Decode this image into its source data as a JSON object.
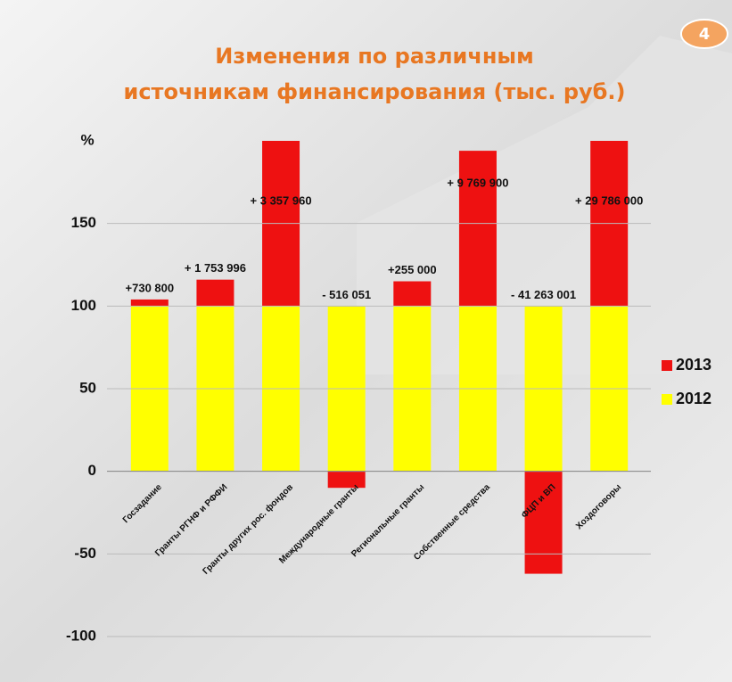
{
  "slide_number": "4",
  "chart_data": {
    "type": "bar",
    "stacked": true,
    "title": [
      "Изменения по различным",
      "источникам финансирования (тыс. руб.)"
    ],
    "y_label": "%",
    "categories": [
      "Госзадание",
      "Гранты РГНФ и РФФИ",
      "Гранты других рос. фондов",
      "Международные гранты",
      "Региональные гранты",
      "Собственные средства",
      "ФЦП и ВП",
      "Хоздоговоры"
    ],
    "series": [
      {
        "name": "2012",
        "color": "#ffff00",
        "values": [
          100,
          100,
          100,
          100,
          100,
          100,
          100,
          100
        ]
      },
      {
        "name": "2013",
        "color": "#ee1111",
        "values": [
          4,
          16,
          100,
          -10,
          15,
          94,
          -62,
          100
        ]
      }
    ],
    "changes": [
      "+730 800",
      "+ 1 753 996",
      "+ 3 357 960",
      "- 516 051",
      "+255 000",
      "+ 9 769 900",
      "- 41 263 001",
      "+ 29 786 000"
    ],
    "ylim": [
      -100,
      200
    ],
    "yticks": [
      -100,
      -50,
      0,
      50,
      100,
      150
    ],
    "grid": true,
    "legend": "right"
  }
}
